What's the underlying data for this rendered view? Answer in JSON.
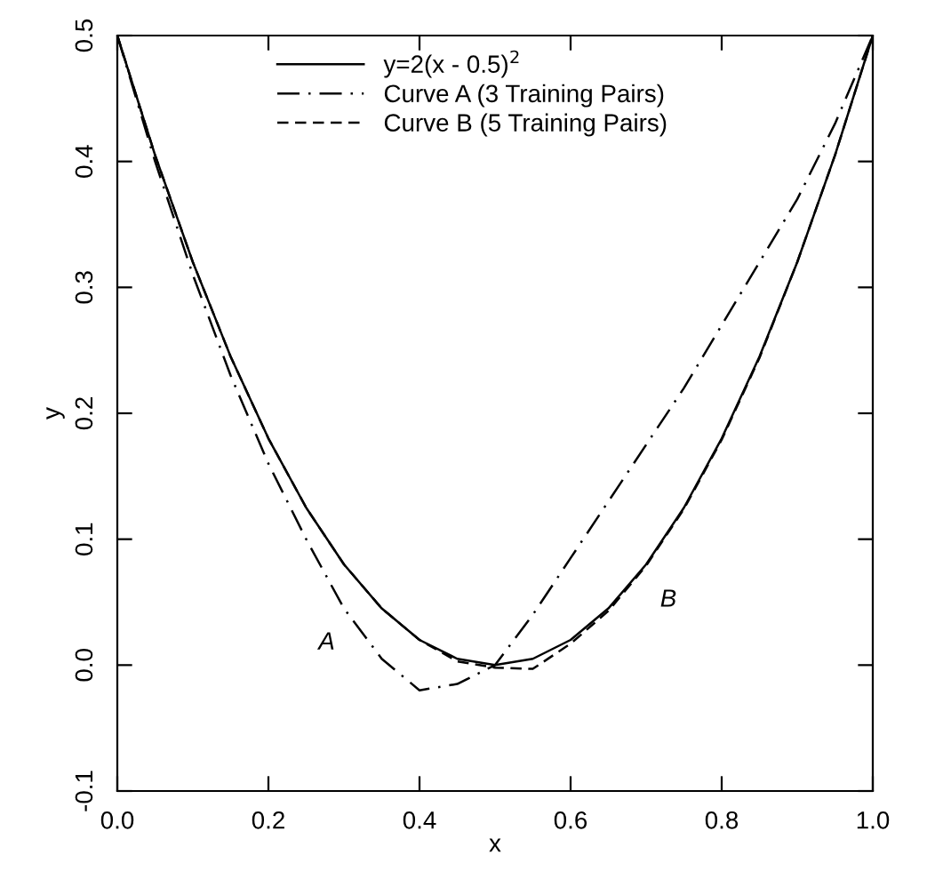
{
  "chart_data": {
    "type": "line",
    "xlabel": "x",
    "ylabel": "y",
    "x": [
      0,
      0.05,
      0.1,
      0.15,
      0.2,
      0.25,
      0.3,
      0.35,
      0.4,
      0.45,
      0.5,
      0.55,
      0.6,
      0.65,
      0.7,
      0.75,
      0.8,
      0.85,
      0.9,
      0.95,
      1.0
    ],
    "series": [
      {
        "name": "y=2(x - 0.5)$^{2}$",
        "color": "#000000",
        "line_style": "solid",
        "values": [
          0.5,
          0.405,
          0.32,
          0.245,
          0.18,
          0.125,
          0.08,
          0.045,
          0.02,
          0.005,
          0,
          0.005,
          0.02,
          0.045,
          0.08,
          0.125,
          0.18,
          0.245,
          0.32,
          0.405,
          0.5
        ]
      },
      {
        "name": "Curve A (3 Training Pairs)",
        "color": "#000000",
        "line_style": "dashdot",
        "values": [
          0.5,
          0.4,
          0.31,
          0.23,
          0.16,
          0.1,
          0.045,
          0.005,
          -0.02,
          -0.015,
          0,
          0.04,
          0.085,
          0.13,
          0.175,
          0.22,
          0.27,
          0.32,
          0.37,
          0.43,
          0.5
        ]
      },
      {
        "name": "Curve B (5 Training Pairs)",
        "color": "#000000",
        "line_style": "dashed",
        "values": [
          0.5,
          0.405,
          0.32,
          0.245,
          0.18,
          0.125,
          0.08,
          0.045,
          0.02,
          0.003,
          -0.002,
          -0.003,
          0.017,
          0.043,
          0.079,
          0.124,
          0.179,
          0.244,
          0.32,
          0.405,
          0.5
        ]
      }
    ],
    "xlim": [
      0,
      1
    ],
    "ylim": [
      -0.1,
      0.5
    ],
    "xticks": [
      {
        "value": 0,
        "label": "0.0"
      },
      0.2,
      0.4,
      0.6,
      0.8,
      {
        "value": 1,
        "label": "1.0"
      }
    ],
    "yticks": [
      -0.1,
      {
        "value": 0,
        "label": "0.0"
      },
      0.1,
      0.2,
      0.3,
      0.4,
      0.5
    ],
    "annotations": [
      {
        "text": "A",
        "x": 0.3,
        "y": 0.045
      },
      {
        "text": "B",
        "x": 0.7,
        "y": 0.079
      }
    ],
    "legend": "top",
    "grid": false,
    "marker": "none"
  }
}
